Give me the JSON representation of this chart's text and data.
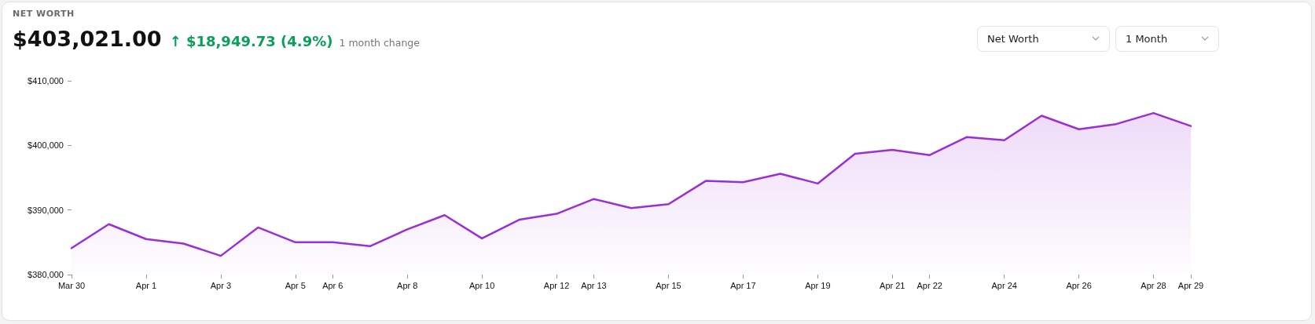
{
  "chart_data": {
    "type": "area",
    "title": "NET WORTH",
    "annotations": [
      "$403,021.00",
      "↑ $18,949.73 (4.9%)",
      "1 month change",
      "Net Worth",
      "1 Month"
    ],
    "x": [
      "--03-30",
      "--03-31",
      "--04-01",
      "--04-02",
      "--04-03",
      "--04-04",
      "--04-05",
      "--04-06",
      "--04-07",
      "--04-08",
      "--04-09",
      "--04-10",
      "--04-11",
      "--04-12",
      "--04-13",
      "--04-14",
      "--04-15",
      "--04-16",
      "--04-17",
      "--04-18",
      "--04-19",
      "--04-20",
      "--04-21",
      "--04-22",
      "--04-23",
      "--04-24",
      "--04-25",
      "--04-26",
      "--04-27",
      "--04-28",
      "--04-29"
    ],
    "series": [
      {
        "color": "#9b2fd6",
        "values": [
          384100,
          387800,
          385500,
          384800,
          382900,
          387300,
          385000,
          385000,
          384400,
          387000,
          389200,
          385600,
          388500,
          389400,
          391700,
          390300,
          390900,
          394500,
          394300,
          395600,
          394100,
          398700,
          399300,
          398500,
          401300,
          400800,
          404600,
          402500,
          403300,
          405000,
          403000
        ]
      }
    ],
    "xlim": [
      "--03-30",
      "--04-29"
    ],
    "xticks": [
      {
        "value": "--03-30",
        "label": "Mar 30"
      },
      {
        "value": "--04-01",
        "label": "Apr 1"
      },
      {
        "value": "--04-03",
        "label": "Apr 3"
      },
      {
        "value": "--04-05",
        "label": "Apr 5"
      },
      {
        "value": "--04-06",
        "label": "Apr 6"
      },
      {
        "value": "--04-08",
        "label": "Apr 8"
      },
      {
        "value": "--04-10",
        "label": "Apr 10"
      },
      {
        "value": "--04-12",
        "label": "Apr 12"
      },
      {
        "value": "--04-13",
        "label": "Apr 13"
      },
      {
        "value": "--04-15",
        "label": "Apr 15"
      },
      {
        "value": "--04-17",
        "label": "Apr 17"
      },
      {
        "value": "--04-19",
        "label": "Apr 19"
      },
      {
        "value": "--04-21",
        "label": "Apr 21"
      },
      {
        "value": "--04-22",
        "label": "Apr 22"
      },
      {
        "value": "--04-24",
        "label": "Apr 24"
      },
      {
        "value": "--04-26",
        "label": "Apr 26"
      },
      {
        "value": "--04-28",
        "label": "Apr 28"
      },
      {
        "value": "--04-29",
        "label": "Apr 29"
      }
    ],
    "ylim": [
      380000,
      410000
    ],
    "yticks": [
      {
        "value": 380000,
        "label": "$380,000"
      },
      {
        "value": 390000,
        "label": "$390,000"
      },
      {
        "value": 400000,
        "label": "$400,000"
      },
      {
        "value": 410000,
        "label": "$410,000"
      }
    ],
    "grid": false,
    "marker": "none",
    "line_style": "solid"
  }
}
